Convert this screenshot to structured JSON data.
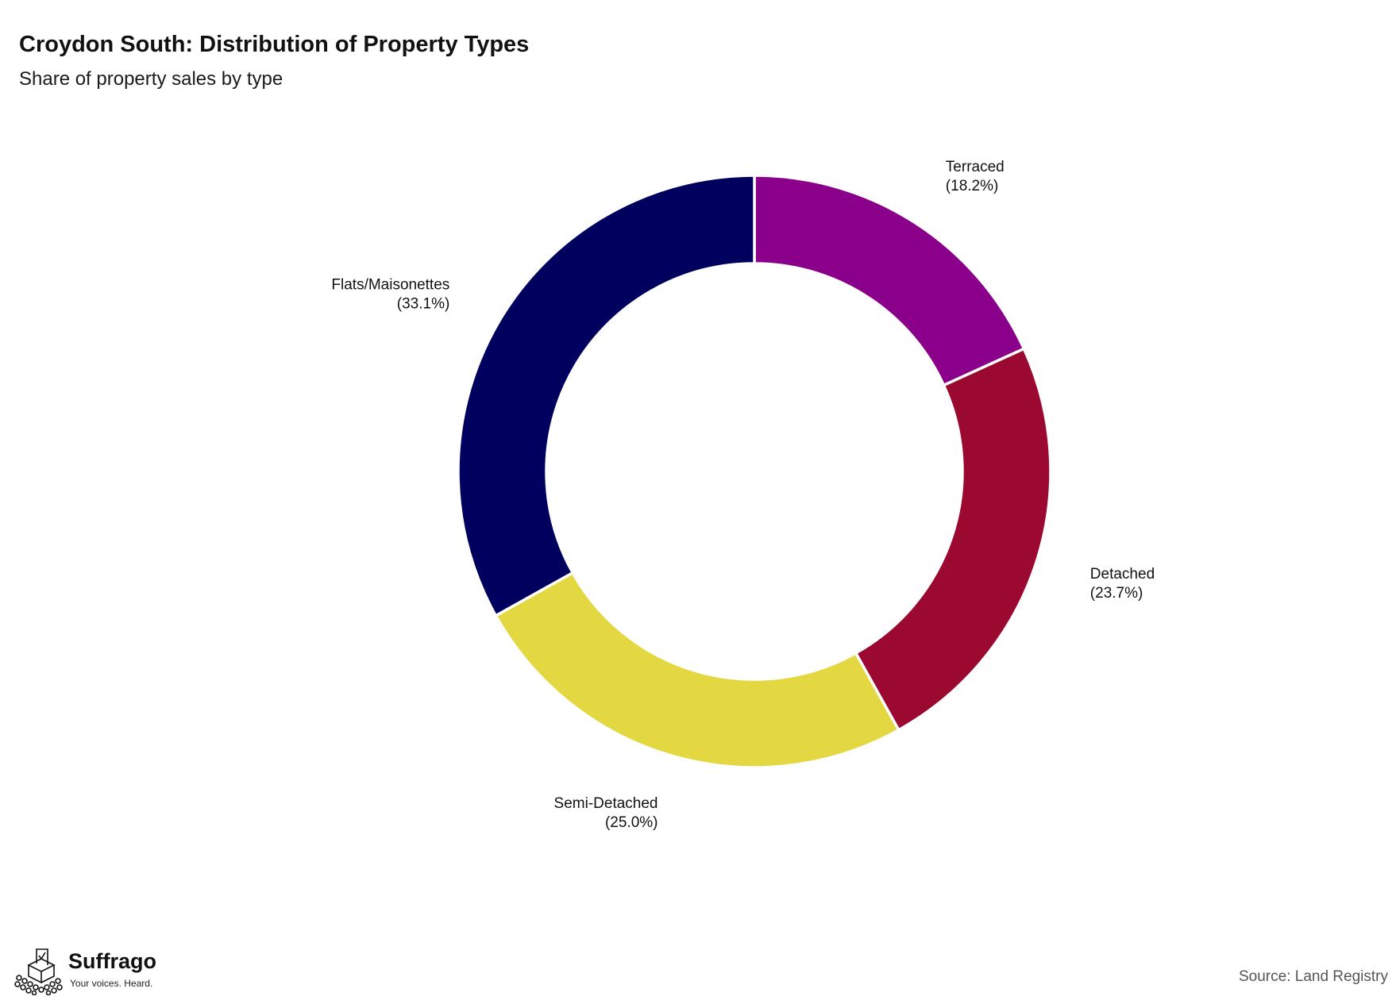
{
  "header": {
    "title": "Croydon South: Distribution of Property Types",
    "subtitle": "Share of property sales by type"
  },
  "chart_data": {
    "type": "pie",
    "style": "donut",
    "title": "Croydon South: Distribution of Property Types",
    "subtitle": "Share of property sales by type",
    "start_angle": "12 o'clock",
    "direction": "clockwise",
    "slices": [
      {
        "label": "Terraced",
        "value": 18.2,
        "value_label": "(18.2%)",
        "color": "#8b008b"
      },
      {
        "label": "Detached",
        "value": 23.7,
        "value_label": "(23.7%)",
        "color": "#9b0830"
      },
      {
        "label": "Semi-Detached",
        "value": 25.0,
        "value_label": "(25.0%)",
        "color": "#e3d842"
      },
      {
        "label": "Flats/Maisonettes",
        "value": 33.1,
        "value_label": "(33.1%)",
        "color": "#00005f"
      }
    ],
    "legend": "none"
  },
  "footer": {
    "brand_name": "Suffrago",
    "brand_tagline": "Your voices. Heard.",
    "brand_icon": "ballot-box-crowd-icon",
    "source": "Source: Land Registry"
  }
}
